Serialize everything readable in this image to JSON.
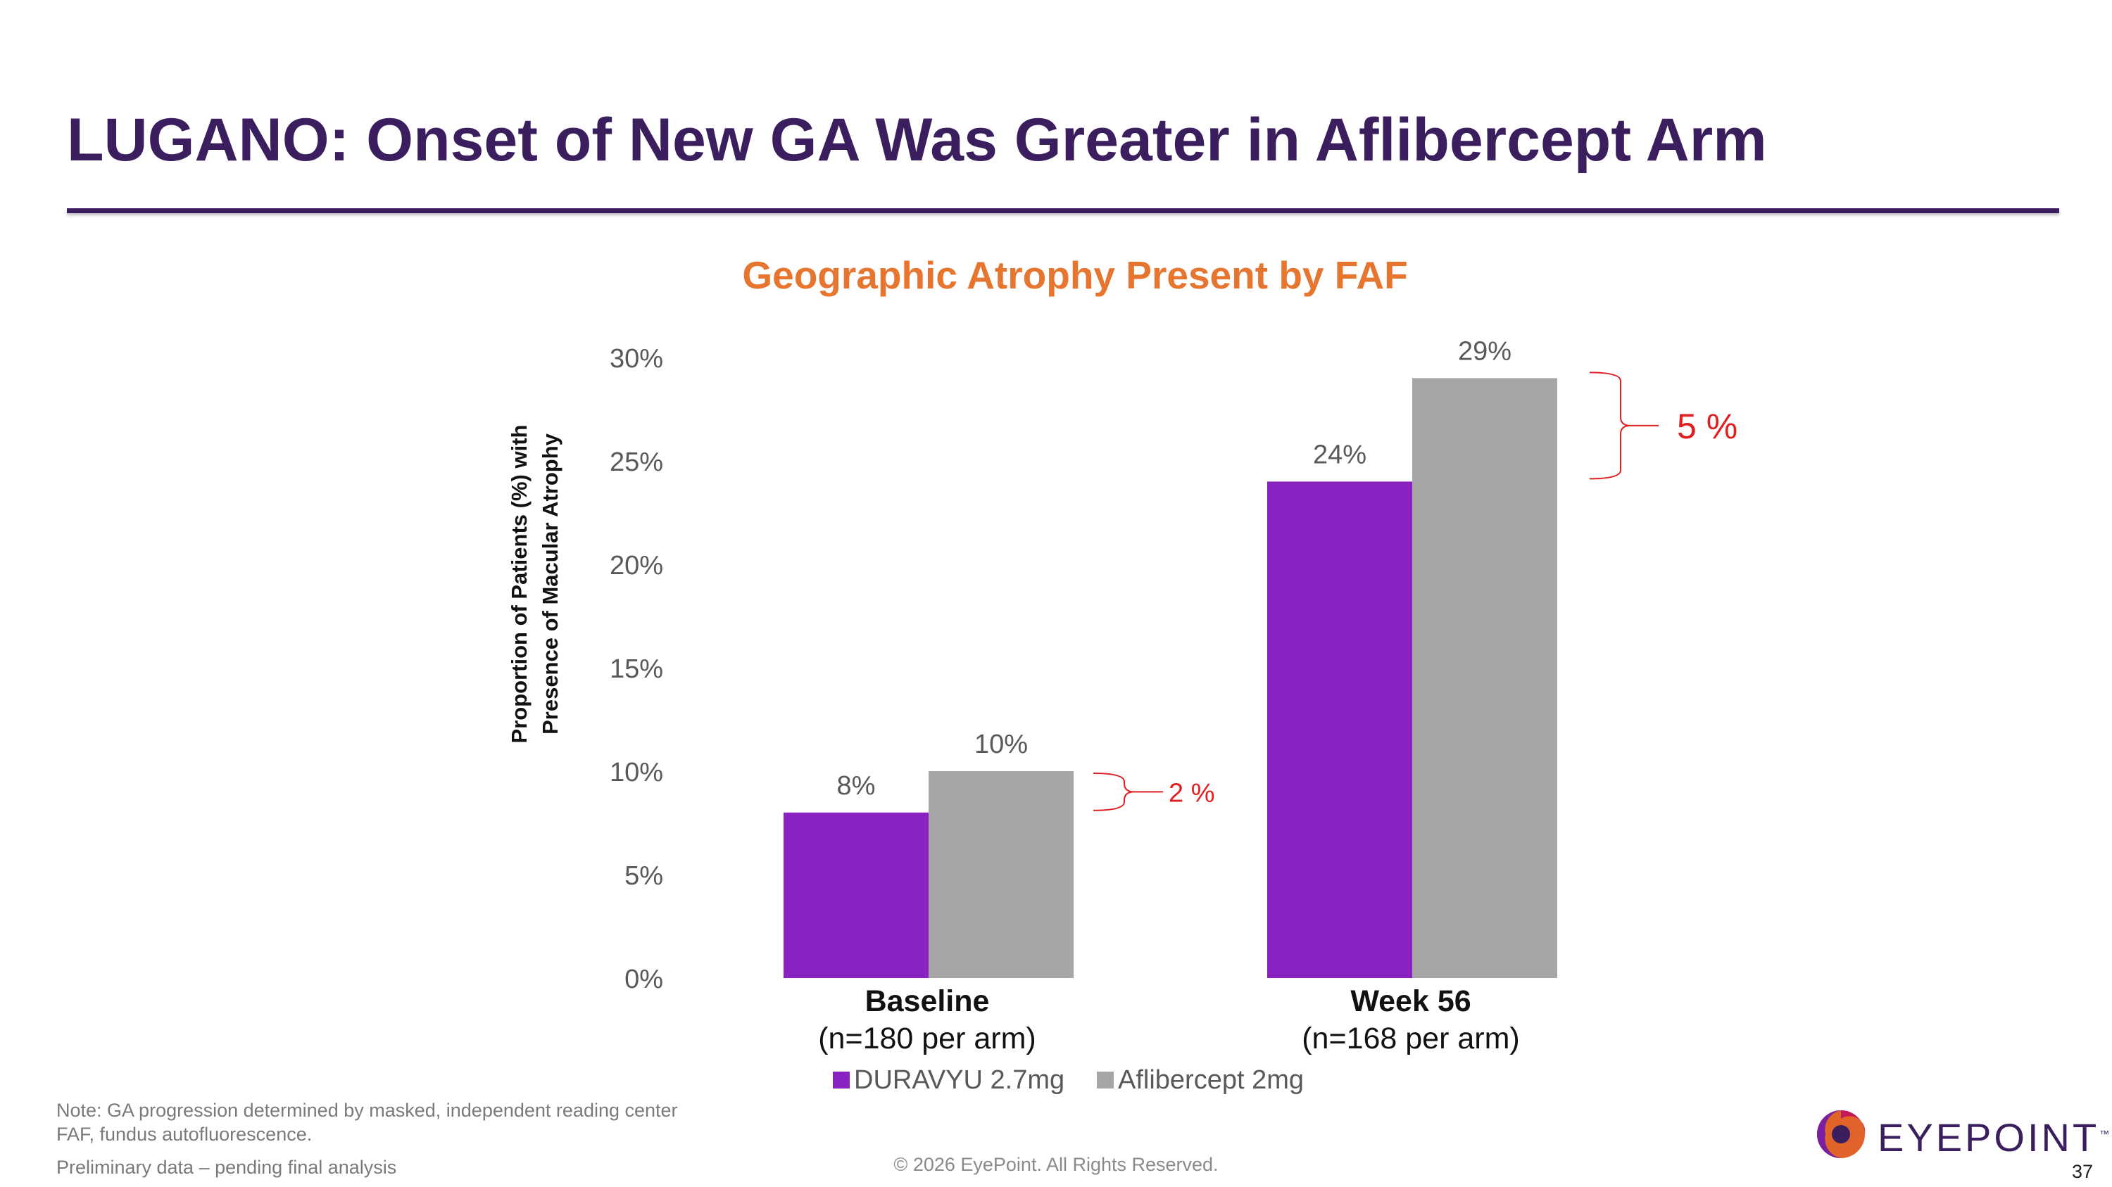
{
  "slide": {
    "title": "LUGANO: Onset of New GA Was Greater in Aflibercept Arm",
    "notes": [
      "Note: GA progression determined by masked, independent reading center",
      "FAF, fundus autofluorescence.",
      "Preliminary data – pending final analysis"
    ],
    "copyright": "© 2026 EyePoint. All Rights Reserved.",
    "page_number": "37",
    "logo_text": "EYEPOINT",
    "logo_mark": "™"
  },
  "colors": {
    "title": "#3b1e5e",
    "chart_title": "#e6752f",
    "duravyu": "#8a21c1",
    "aflibercept": "#a6a6a6",
    "difference": "#e02020"
  },
  "chart_data": {
    "type": "bar",
    "title": "Geographic Atrophy Present by FAF",
    "ylabel_lines": [
      "Proportion of Patients (%) with",
      "Presence of Macular Atrophy"
    ],
    "categories": [
      "Baseline",
      "Week 56"
    ],
    "category_sublabels": [
      "(n=180 per arm)",
      "(n=168 per arm)"
    ],
    "series": [
      {
        "name": "DURAVYU 2.7mg",
        "values": [
          8,
          24
        ],
        "labels": [
          "8%",
          "24%"
        ]
      },
      {
        "name": "Aflibercept 2mg",
        "values": [
          10,
          29
        ],
        "labels": [
          "10%",
          "29%"
        ]
      }
    ],
    "ylim": [
      0,
      30
    ],
    "yticks": [
      0,
      5,
      10,
      15,
      20,
      25,
      30
    ],
    "ytick_labels": [
      "0%",
      "5%",
      "10%",
      "15%",
      "20%",
      "25%",
      "30%"
    ],
    "differences": [
      "2 %",
      "5 %"
    ],
    "grid": false,
    "legend_position": "bottom"
  }
}
